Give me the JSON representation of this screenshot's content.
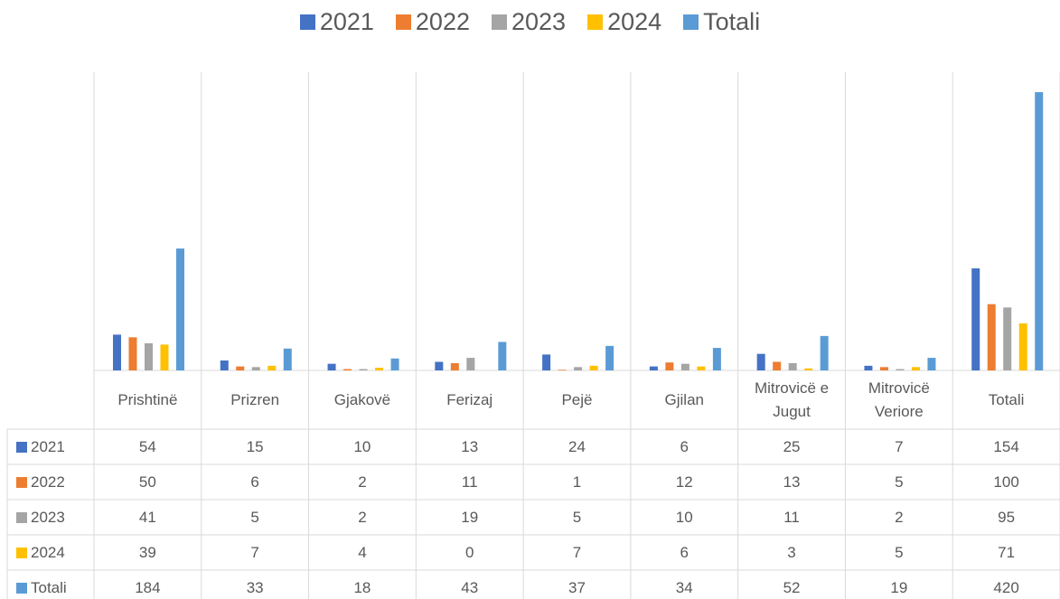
{
  "chart_data": {
    "type": "bar",
    "categories": [
      "Prishtinë",
      "Prizren",
      "Gjakovë",
      "Ferizaj",
      "Pejë",
      "Gjilan",
      "Mitrovicë e Jugut",
      "Mitrovicë Veriore",
      "Totali"
    ],
    "series": [
      {
        "name": "2021",
        "color": "#4472c4",
        "values": [
          54,
          15,
          10,
          13,
          24,
          6,
          25,
          7,
          154
        ]
      },
      {
        "name": "2022",
        "color": "#ed7d31",
        "values": [
          50,
          6,
          2,
          11,
          1,
          12,
          13,
          5,
          100
        ]
      },
      {
        "name": "2023",
        "color": "#a5a5a5",
        "values": [
          41,
          5,
          2,
          19,
          5,
          10,
          11,
          2,
          95
        ]
      },
      {
        "name": "2024",
        "color": "#ffc000",
        "values": [
          39,
          7,
          4,
          0,
          7,
          6,
          3,
          5,
          71
        ]
      },
      {
        "name": "Totali",
        "color": "#5b9bd5",
        "values": [
          184,
          33,
          18,
          43,
          37,
          34,
          52,
          19,
          420
        ]
      }
    ],
    "ylim": [
      0,
      450
    ],
    "legend": "top",
    "data_table": true
  }
}
